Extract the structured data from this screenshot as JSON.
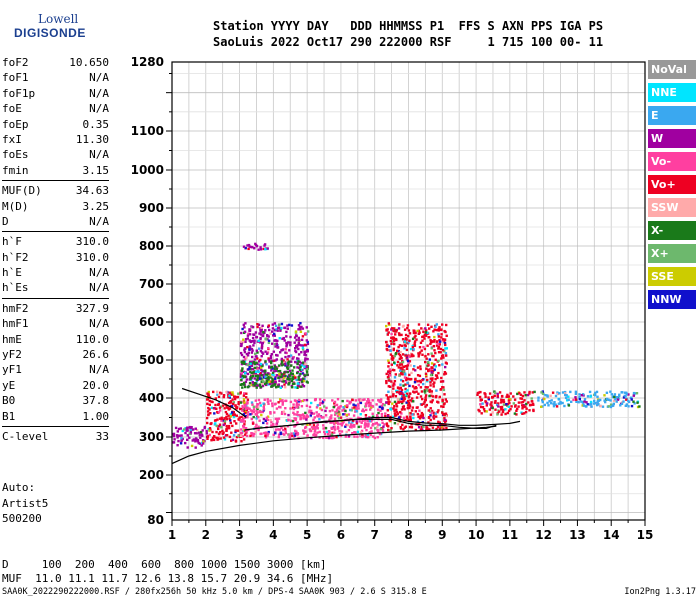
{
  "logo": {
    "line1": "Lowell",
    "line2": "DIGISONDE"
  },
  "header": {
    "line1": "Station YYYY DAY   DDD HHMMSS P1  FFS S AXN PPS IGA PS",
    "line2": "SaoLuis 2022 Oct17 290 222000 RSF     1 715 100 00- 11"
  },
  "params": [
    [
      {
        "k": "foF2",
        "v": "10.650"
      },
      {
        "k": "foF1",
        "v": "N/A"
      },
      {
        "k": "foF1p",
        "v": "N/A"
      },
      {
        "k": "foE",
        "v": "N/A"
      },
      {
        "k": "foEp",
        "v": "0.35"
      },
      {
        "k": "fxI",
        "v": "11.30"
      },
      {
        "k": "foEs",
        "v": "N/A"
      },
      {
        "k": "fmin",
        "v": "3.15"
      }
    ],
    [
      {
        "k": "MUF(D)",
        "v": "34.63"
      },
      {
        "k": "M(D)",
        "v": "3.25"
      },
      {
        "k": "D",
        "v": "N/A"
      }
    ],
    [
      {
        "k": "h`F",
        "v": "310.0"
      },
      {
        "k": "h`F2",
        "v": "310.0"
      },
      {
        "k": "h`E",
        "v": "N/A"
      },
      {
        "k": "h`Es",
        "v": "N/A"
      }
    ],
    [
      {
        "k": "hmF2",
        "v": "327.9"
      },
      {
        "k": "hmF1",
        "v": "N/A"
      },
      {
        "k": "hmE",
        "v": "110.0"
      },
      {
        "k": "yF2",
        "v": "26.6"
      },
      {
        "k": "yF1",
        "v": "N/A"
      },
      {
        "k": "yE",
        "v": "20.0"
      },
      {
        "k": "B0",
        "v": "37.8"
      },
      {
        "k": "B1",
        "v": "1.00"
      }
    ],
    [
      {
        "k": "C-level",
        "v": "33"
      }
    ]
  ],
  "auto": {
    "l1": "Auto:",
    "l2": "Artist5",
    "l3": "500200"
  },
  "muf_table": {
    "line1": "D     100  200  400  600  800 1000 1500 3000 [km]",
    "line2": "MUF  11.0 11.1 11.7 12.6 13.8 15.7 20.9 34.6 [MHz]"
  },
  "footer": "SAA0K_2022290222000.RSF / 280fx256h 50 kHz 5.0 km / DPS-4 SAA0K 903 / 2.6 S 315.8 E",
  "footer_right": "Ion2Png 1.3.17",
  "legend": [
    {
      "label": "NoVal",
      "color": "#999999"
    },
    {
      "label": "NNE",
      "color": "#00e5ff"
    },
    {
      "label": "E",
      "color": "#3aa8f0"
    },
    {
      "label": "W",
      "color": "#a000a0"
    },
    {
      "label": "Vo-",
      "color": "#ff3fa0"
    },
    {
      "label": "Vo+",
      "color": "#ee0022"
    },
    {
      "label": "SSW",
      "color": "#ffaaaa"
    },
    {
      "label": "X-",
      "color": "#1a7a1a"
    },
    {
      "label": "X+",
      "color": "#6db86d"
    },
    {
      "label": "SSE",
      "color": "#cccc00"
    },
    {
      "label": "NNW",
      "color": "#1010cc"
    }
  ],
  "chart_data": {
    "type": "scatter",
    "x_ticks": [
      "1",
      "2",
      "3",
      "4",
      "5",
      "6",
      "7",
      "8",
      "9",
      "10",
      "11",
      "12",
      "13",
      "14",
      "15"
    ],
    "y_ticks": [
      "80",
      "200",
      "300",
      "400",
      "500",
      "600",
      "700",
      "800",
      "900",
      "1000",
      "1100",
      "1280"
    ],
    "xlim": [
      1,
      15
    ],
    "ylim": [
      80,
      1280
    ],
    "x_scale": "linear",
    "y_scale": "log-like",
    "grid": true,
    "legend_position": "right",
    "traces": {
      "o_trace": {
        "color": "#000000",
        "x": [
          3.15,
          3.5,
          4.0,
          4.5,
          5.0,
          5.5,
          6.0,
          6.5,
          7.0,
          7.5,
          8.0,
          8.5,
          9.0,
          9.5,
          10.0,
          10.3,
          10.6
        ],
        "y": [
          318,
          322,
          326,
          330,
          335,
          338,
          342,
          345,
          345,
          345,
          335,
          330,
          330,
          325,
          322,
          322,
          330
        ]
      },
      "x_trace": {
        "color": "#000000",
        "x": [
          3.9,
          4.5,
          5.0,
          5.5,
          6.0,
          6.5,
          7.0,
          7.5,
          8.0,
          8.5,
          9.0,
          9.5,
          10.0,
          10.5,
          11.0,
          11.3
        ],
        "y": [
          325,
          330,
          334,
          340,
          342,
          346,
          350,
          350,
          340,
          336,
          334,
          330,
          330,
          332,
          335,
          340
        ]
      },
      "profile": {
        "color": "#000000",
        "x": [
          1.0,
          1.5,
          2.0,
          3.0,
          4.0,
          5.0,
          6.0,
          7.0,
          8.0,
          9.0,
          9.8,
          10.3,
          10.6
        ],
        "y": [
          230,
          250,
          262,
          278,
          290,
          298,
          304,
          310,
          315,
          318,
          322,
          325,
          328
        ]
      },
      "lower_curve": {
        "color": "#000000",
        "x": [
          1.3,
          1.8,
          2.3,
          2.8,
          3.2
        ],
        "y": [
          425,
          410,
          395,
          375,
          350
        ]
      }
    },
    "echo_bands": [
      {
        "x": [
          1.0,
          2.0
        ],
        "y": [
          275,
          330
        ],
        "color": "#a000a0"
      },
      {
        "x": [
          2.0,
          3.2
        ],
        "y": [
          290,
          420
        ],
        "color": "#ee0022"
      },
      {
        "x": [
          3.0,
          7.3
        ],
        "y": [
          300,
          400
        ],
        "color": "#ff3fa0"
      },
      {
        "x": [
          3.0,
          5.0
        ],
        "y": [
          430,
          600
        ],
        "color": "#a000a0"
      },
      {
        "x": [
          7.3,
          9.1
        ],
        "y": [
          320,
          600
        ],
        "color": "#ee0022"
      },
      {
        "x": [
          10.0,
          11.7
        ],
        "y": [
          360,
          420
        ],
        "color": "#ee0022"
      },
      {
        "x": [
          11.8,
          14.8
        ],
        "y": [
          380,
          420
        ],
        "color": "#3aa8f0"
      },
      {
        "x": [
          3.0,
          3.8
        ],
        "y": [
          790,
          810
        ],
        "color": "#a000a0"
      },
      {
        "x": [
          3.0,
          5.0
        ],
        "y": [
          430,
          500
        ],
        "color": "#1a7a1a"
      }
    ]
  }
}
